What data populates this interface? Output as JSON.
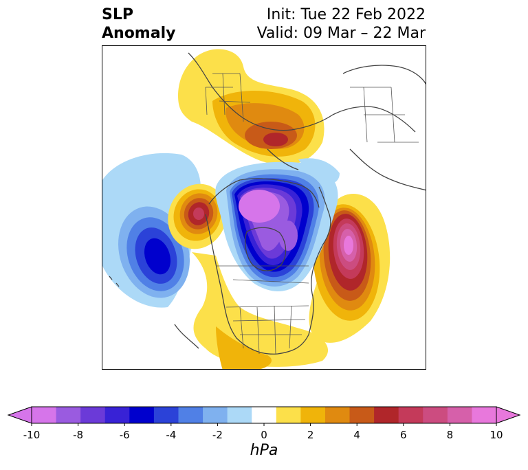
{
  "title": {
    "left_line1": "SLP",
    "left_line2": "Anomaly",
    "init": "Init: Tue 22 Feb 2022",
    "valid": "Valid: 09 Mar – 22 Mar"
  },
  "colorbar": {
    "unit_label": "hPa",
    "ticks": [
      "-10",
      "-8",
      "-6",
      "-4",
      "-2",
      "0",
      "2",
      "4",
      "6",
      "8",
      "10"
    ],
    "colors": [
      "#d675ea",
      "#9a5be0",
      "#6b3ad8",
      "#3822d6",
      "#0000cd",
      "#2b42d8",
      "#5080e6",
      "#7fb1ef",
      "#acd9f7",
      "#ffffff",
      "#fce04a",
      "#f0b40a",
      "#e08a10",
      "#c85a18",
      "#b0262a",
      "#c43a5a",
      "#cc4c80",
      "#d660aa",
      "#e878dc"
    ],
    "under_color": "#d675ea",
    "over_color": "#e878dc"
  }
}
